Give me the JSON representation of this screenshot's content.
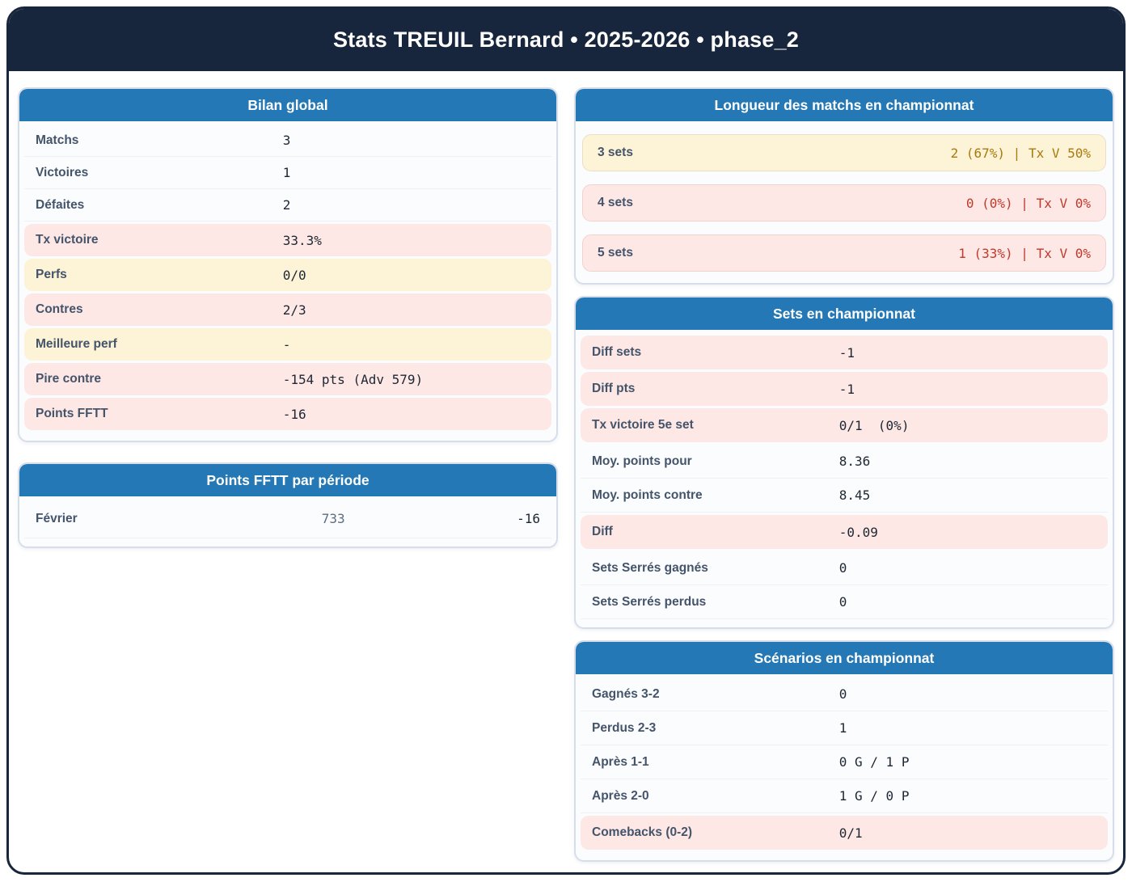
{
  "header": {
    "title": "Stats TREUIL Bernard • 2025-2026 • phase_2"
  },
  "colors": {
    "navy": "#17253d",
    "card_header_blue": "#2478b5",
    "highlight_pink": "#fde8e6",
    "highlight_yellow": "#fdf3d6",
    "value_red": "#c0392b",
    "value_gold": "#a9790e",
    "label_slate": "#44546a"
  },
  "cards": {
    "bilan": {
      "title": "Bilan global",
      "rows": [
        {
          "label": "Matchs",
          "value": "3",
          "variant": "plain"
        },
        {
          "label": "Victoires",
          "value": "1",
          "variant": "plain"
        },
        {
          "label": "Défaites",
          "value": "2",
          "variant": "plain"
        },
        {
          "label": "Tx victoire",
          "value": "33.3%",
          "variant": "pink"
        },
        {
          "label": "Perfs",
          "value": "0/0",
          "variant": "yellow"
        },
        {
          "label": "Contres",
          "value": "2/3",
          "variant": "pink"
        },
        {
          "label": "Meilleure perf",
          "value": "-",
          "variant": "yellow"
        },
        {
          "label": "Pire contre",
          "value": "-154 pts (Adv 579)",
          "variant": "pink"
        },
        {
          "label": "Points FFTT",
          "value": "-16",
          "variant": "pink"
        }
      ]
    },
    "periode": {
      "title": "Points FFTT par période",
      "rows": [
        {
          "label": "Février",
          "points": "733",
          "delta": "-16"
        }
      ]
    },
    "longueur": {
      "title": "Longueur des matchs en championnat",
      "rows": [
        {
          "label": "3 sets",
          "value": "2 (67%) | Tx V 50%",
          "variant": "yellow",
          "value_color": "gold"
        },
        {
          "label": "4 sets",
          "value": "0 (0%) | Tx V 0%",
          "variant": "pink",
          "value_color": "red"
        },
        {
          "label": "5 sets",
          "value": "1 (33%) | Tx V 0%",
          "variant": "pink",
          "value_color": "red"
        }
      ]
    },
    "sets": {
      "title": "Sets en championnat",
      "rows": [
        {
          "label": "Diff sets",
          "value": "-1",
          "variant": "pink"
        },
        {
          "label": "Diff pts",
          "value": "-1",
          "variant": "pink"
        },
        {
          "label": "Tx victoire 5e set",
          "value": "0/1  (0%)",
          "variant": "pink"
        },
        {
          "label": "Moy. points pour",
          "value": "8.36",
          "variant": "plain"
        },
        {
          "label": "Moy. points contre",
          "value": "8.45",
          "variant": "plain"
        },
        {
          "label": "Diff",
          "value": "-0.09",
          "variant": "pink"
        },
        {
          "label": "Sets Serrés gagnés",
          "value": "0",
          "variant": "plain"
        },
        {
          "label": "Sets Serrés perdus",
          "value": "0",
          "variant": "plain"
        }
      ]
    },
    "scenarios": {
      "title": "Scénarios en championnat",
      "rows": [
        {
          "label": "Gagnés 3-2",
          "value": "0",
          "variant": "plain"
        },
        {
          "label": "Perdus 2-3",
          "value": "1",
          "variant": "plain"
        },
        {
          "label": "Après 1-1",
          "value": "0 G / 1 P",
          "variant": "plain"
        },
        {
          "label": "Après 2-0",
          "value": "1 G / 0 P",
          "variant": "plain"
        },
        {
          "label": "Comebacks (0-2)",
          "value": "0/1",
          "variant": "pink"
        }
      ]
    }
  }
}
